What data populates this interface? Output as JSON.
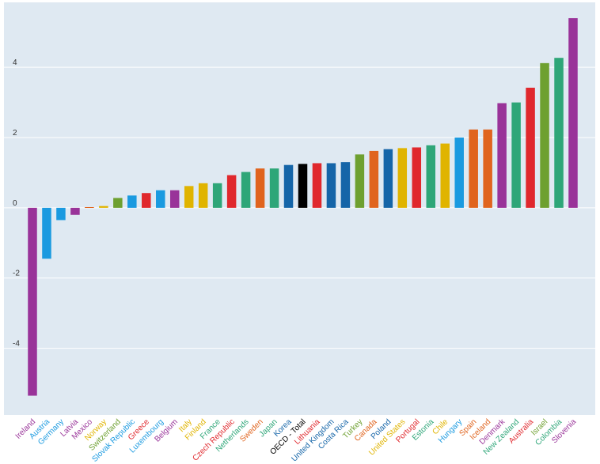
{
  "chart_data": {
    "type": "bar",
    "categories": [
      "Ireland",
      "Austria",
      "Germany",
      "Latvia",
      "Mexico",
      "Norway",
      "Switzerland",
      "Slovak Republic",
      "Greece",
      "Luxembourg",
      "Belgium",
      "Italy",
      "Finland",
      "France",
      "Czech Republic",
      "Netherlands",
      "Sweden",
      "Japan",
      "Korea",
      "OECD - Total",
      "Lithuania",
      "United Kingdom",
      "Costa Rica",
      "Turkey",
      "Canada",
      "Poland",
      "United States",
      "Portugal",
      "Estonia",
      "Chile",
      "Hungary",
      "Spain",
      "Iceland",
      "Denmark",
      "New Zealand",
      "Australia",
      "Israel",
      "Colombia",
      "Slovenia"
    ],
    "values": [
      -5.35,
      -1.45,
      -0.35,
      -0.2,
      0.02,
      0.05,
      0.28,
      0.35,
      0.42,
      0.5,
      0.5,
      0.62,
      0.7,
      0.7,
      0.93,
      1.02,
      1.12,
      1.12,
      1.22,
      1.25,
      1.27,
      1.27,
      1.3,
      1.52,
      1.62,
      1.67,
      1.7,
      1.72,
      1.78,
      1.83,
      2.0,
      2.23,
      2.23,
      2.98,
      3.0,
      3.42,
      4.12,
      4.27,
      5.4
    ],
    "colors": [
      "#993399",
      "#1a9ae0",
      "#1a9ae0",
      "#993399",
      "#e0641e",
      "#e0b400",
      "#6ea030",
      "#1a9ae0",
      "#e0282d",
      "#1a9ae0",
      "#993399",
      "#e0b400",
      "#e0b400",
      "#2ea678",
      "#e0282d",
      "#2ea678",
      "#e0641e",
      "#2ea678",
      "#1565a8",
      "#000000",
      "#e0282d",
      "#1565a8",
      "#1565a8",
      "#6ea030",
      "#e0641e",
      "#1565a8",
      "#e0b400",
      "#e0282d",
      "#2ea678",
      "#e0b400",
      "#1a9ae0",
      "#e0641e",
      "#e0641e",
      "#993399",
      "#2ea678",
      "#e0282d",
      "#6ea030",
      "#2ea678",
      "#993399"
    ],
    "label_colors": [
      "#993399",
      "#1a9ae0",
      "#1a9ae0",
      "#993399",
      "#993399",
      "#e0b400",
      "#6ea030",
      "#1a9ae0",
      "#e0282d",
      "#1a9ae0",
      "#993399",
      "#e0b400",
      "#e0b400",
      "#2ea678",
      "#e0282d",
      "#2ea678",
      "#e0641e",
      "#2ea678",
      "#1565a8",
      "#000000",
      "#e0282d",
      "#1565a8",
      "#1565a8",
      "#6ea030",
      "#e0641e",
      "#1565a8",
      "#e0b400",
      "#e0282d",
      "#2ea678",
      "#e0b400",
      "#1a9ae0",
      "#e0641e",
      "#e0641e",
      "#993399",
      "#2ea678",
      "#e0282d",
      "#6ea030",
      "#2ea678",
      "#993399"
    ],
    "y_ticks": [
      "4",
      "2",
      "0",
      "-2",
      "-4"
    ],
    "y_tick_values": [
      4,
      2,
      0,
      -2,
      -4
    ],
    "ylim": [
      -5.9,
      5.85
    ],
    "grid": true,
    "plot_background": "#dfe9f2",
    "title": "",
    "xlabel": "",
    "ylabel": ""
  }
}
